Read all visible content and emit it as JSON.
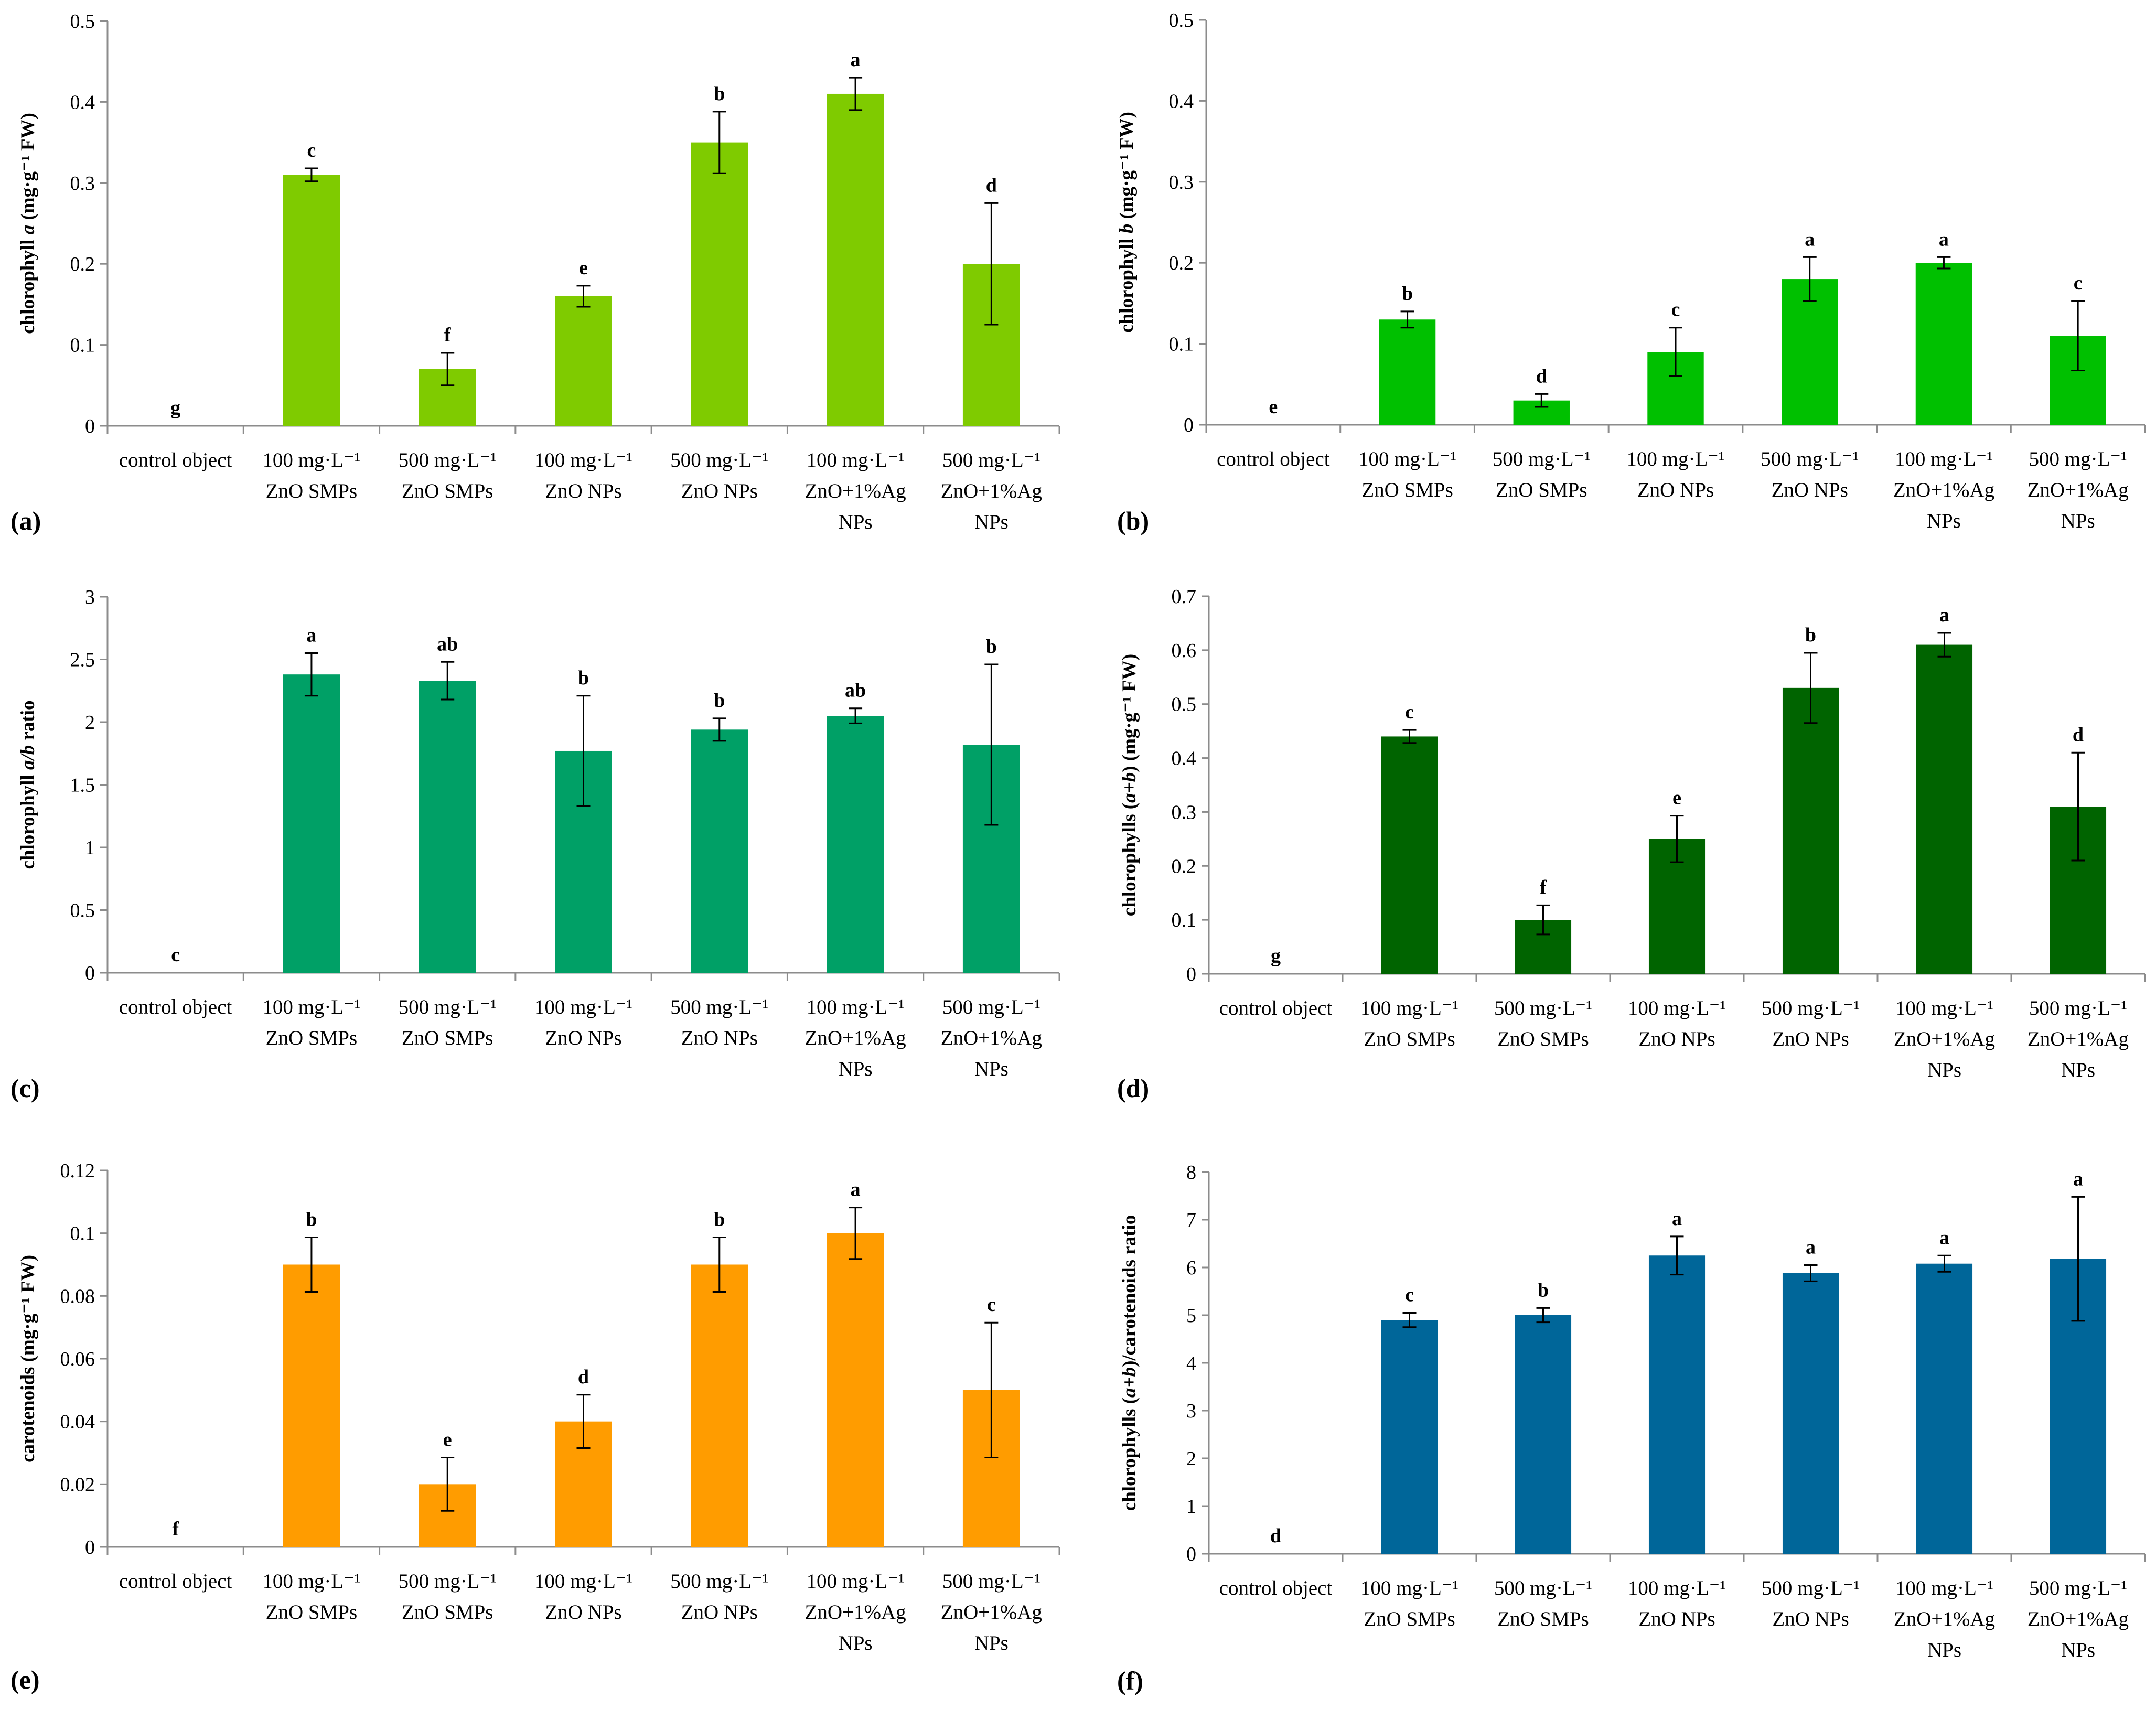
{
  "categories": [
    [
      "control object"
    ],
    [
      "100 mg·L⁻¹",
      "ZnO SMPs"
    ],
    [
      "500 mg·L⁻¹",
      "ZnO SMPs"
    ],
    [
      "100 mg·L⁻¹",
      "ZnO NPs"
    ],
    [
      "500 mg·L⁻¹",
      "ZnO NPs"
    ],
    [
      "100 mg·L⁻¹",
      "ZnO+1%Ag",
      "NPs"
    ],
    [
      "500 mg·L⁻¹",
      "ZnO+1%Ag",
      "NPs"
    ]
  ],
  "chart_data": [
    {
      "type": "bar",
      "panel": "(a)",
      "color": "#7FCB00",
      "ylabel": [
        {
          "t": "chlorophyll "
        },
        {
          "t": "a",
          "i": true
        },
        {
          "t": " (mg·g⁻¹ FW)"
        }
      ],
      "ylim": [
        0,
        0.5
      ],
      "ticks": [
        "0",
        "0.1",
        "0.2",
        "0.3",
        "0.4",
        "0.5"
      ],
      "values": [
        0,
        0.31,
        0.07,
        0.16,
        0.35,
        0.41,
        0.2
      ],
      "errors": [
        0,
        0.008,
        0.02,
        0.013,
        0.038,
        0.02,
        0.075
      ],
      "letters": [
        "g",
        "c",
        "f",
        "e",
        "b",
        "a",
        "d"
      ]
    },
    {
      "type": "bar",
      "panel": "(b)",
      "color": "#00C000",
      "ylabel": [
        {
          "t": "chlorophyll "
        },
        {
          "t": "b",
          "i": true
        },
        {
          "t": " (mg·g⁻¹ FW)"
        }
      ],
      "ylim": [
        0,
        0.5
      ],
      "ticks": [
        "0",
        "0.1",
        "0.2",
        "0.3",
        "0.4",
        "0.5"
      ],
      "values": [
        0,
        0.13,
        0.03,
        0.09,
        0.18,
        0.2,
        0.11
      ],
      "errors": [
        0,
        0.01,
        0.008,
        0.03,
        0.027,
        0.007,
        0.043
      ],
      "letters": [
        "e",
        "b",
        "d",
        "c",
        "a",
        "a",
        "c"
      ]
    },
    {
      "type": "bar",
      "panel": "(c)",
      "color": "#00A066",
      "ylabel": [
        {
          "t": "chlorophyll "
        },
        {
          "t": "a/b",
          "i": true
        },
        {
          "t": " ratio"
        }
      ],
      "ylim": [
        0,
        3
      ],
      "ticks": [
        "0",
        "0.5",
        "1",
        "1.5",
        "2",
        "2.5",
        "3"
      ],
      "values": [
        0,
        2.38,
        2.33,
        1.77,
        1.94,
        2.05,
        1.82
      ],
      "errors": [
        0,
        0.17,
        0.15,
        0.44,
        0.09,
        0.06,
        0.64
      ],
      "letters": [
        "c",
        "a",
        "ab",
        "b",
        "b",
        "ab",
        "b"
      ]
    },
    {
      "type": "bar",
      "panel": "(d)",
      "color": "#006400",
      "ylabel": [
        {
          "t": "chlorophylls ("
        },
        {
          "t": "a+b",
          "i": true
        },
        {
          "t": ") (mg·g⁻¹ FW)"
        }
      ],
      "ylim": [
        0,
        0.7
      ],
      "ticks": [
        "0",
        "0.1",
        "0.2",
        "0.3",
        "0.4",
        "0.5",
        "0.6",
        "0.7"
      ],
      "values": [
        0,
        0.44,
        0.1,
        0.25,
        0.53,
        0.61,
        0.31
      ],
      "errors": [
        0,
        0.012,
        0.027,
        0.043,
        0.065,
        0.022,
        0.1
      ],
      "letters": [
        "g",
        "c",
        "f",
        "e",
        "b",
        "a",
        "d"
      ]
    },
    {
      "type": "bar",
      "panel": "(e)",
      "color": "#FF9C00",
      "ylabel": [
        {
          "t": "carotenoids (mg·g⁻¹ FW)"
        }
      ],
      "ylim": [
        0,
        0.12
      ],
      "ticks": [
        "0",
        "0.02",
        "0.04",
        "0.06",
        "0.08",
        "0.1",
        "0.12"
      ],
      "values": [
        0,
        0.09,
        0.02,
        0.04,
        0.09,
        0.1,
        0.05
      ],
      "errors": [
        0,
        0.0087,
        0.0085,
        0.0085,
        0.0087,
        0.0082,
        0.0215
      ],
      "letters": [
        "f",
        "b",
        "e",
        "d",
        "b",
        "a",
        "c"
      ]
    },
    {
      "type": "bar",
      "panel": "(f)",
      "color": "#006699",
      "ylabel": [
        {
          "t": "chlorophylls ("
        },
        {
          "t": "a+b",
          "i": true
        },
        {
          "t": ")/carotenoids ratio"
        }
      ],
      "ylim": [
        0,
        8
      ],
      "ticks": [
        "0",
        "1",
        "2",
        "3",
        "4",
        "5",
        "6",
        "7",
        "8"
      ],
      "values": [
        0,
        4.9,
        5.0,
        6.25,
        5.88,
        6.08,
        6.18
      ],
      "errors": [
        0,
        0.15,
        0.15,
        0.4,
        0.17,
        0.17,
        1.3
      ],
      "letters": [
        "d",
        "c",
        "b",
        "a",
        "a",
        "a",
        "a"
      ]
    }
  ]
}
